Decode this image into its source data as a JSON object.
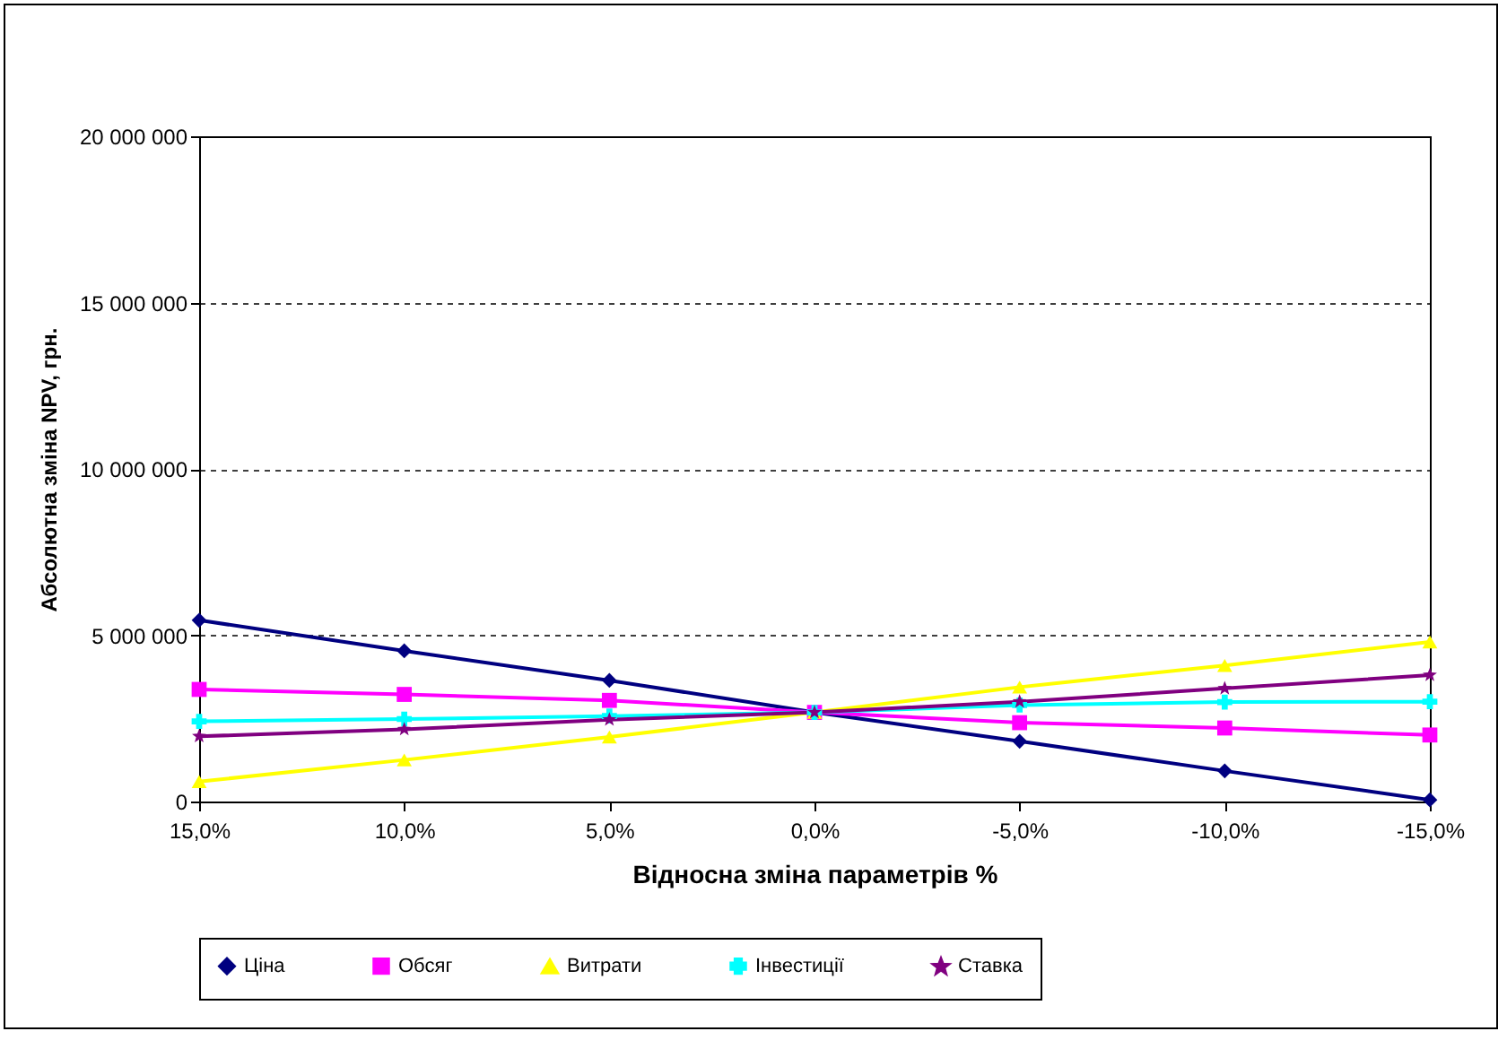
{
  "chart_data": {
    "type": "line",
    "xlabel": "Відносна зміна параметрів %",
    "ylabel": "Абсолютна зміна NPV, грн.",
    "categories": [
      "15,0%",
      "10,0%",
      "5,0%",
      "0,0%",
      "-5,0%",
      "-10,0%",
      "-15,0%"
    ],
    "ylim": [
      0,
      20000000
    ],
    "yticks": [
      {
        "value": 0,
        "label": "0"
      },
      {
        "value": 5000000,
        "label": "5 000 000"
      },
      {
        "value": 10000000,
        "label": "10 000 000"
      },
      {
        "value": 15000000,
        "label": "15 000 000"
      },
      {
        "value": 20000000,
        "label": "20 000 000"
      }
    ],
    "grid": "y",
    "legend": "bottom",
    "line_style": "solid",
    "series": [
      {
        "name": "Ціна",
        "color": "#000080",
        "marker": "diamond",
        "values": [
          5450000,
          4530000,
          3640000,
          2680000,
          1810000,
          920000,
          50000
        ]
      },
      {
        "name": "Обсяг",
        "color": "#ff00ff",
        "marker": "square",
        "values": [
          3370000,
          3220000,
          3040000,
          2680000,
          2370000,
          2210000,
          2000000
        ]
      },
      {
        "name": "Витрати",
        "color": "#ffff00",
        "marker": "triangle",
        "values": [
          600000,
          1250000,
          1940000,
          2680000,
          3440000,
          4090000,
          4800000
        ]
      },
      {
        "name": "Інвестиції",
        "color": "#00ffff",
        "marker": "cross",
        "values": [
          2410000,
          2480000,
          2570000,
          2680000,
          2900000,
          2990000,
          3000000
        ]
      },
      {
        "name": "Ставка",
        "color": "#800080",
        "marker": "star",
        "values": [
          1960000,
          2170000,
          2460000,
          2680000,
          3000000,
          3400000,
          3800000
        ]
      }
    ]
  }
}
